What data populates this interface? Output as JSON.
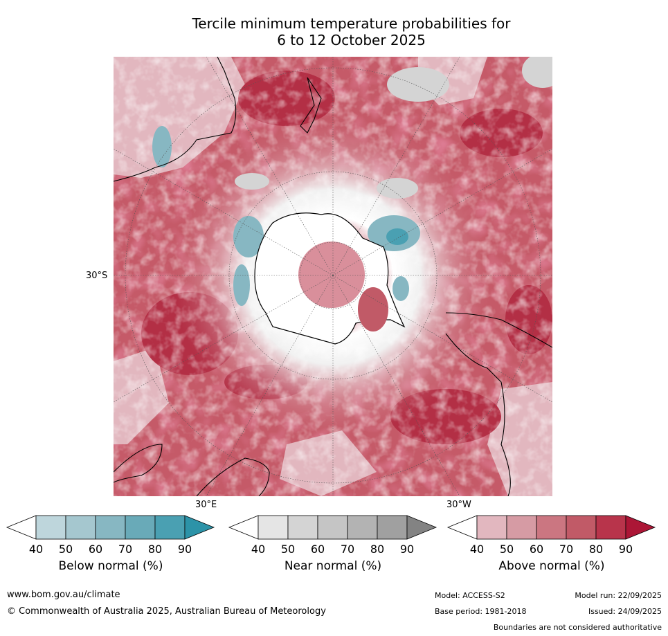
{
  "title": {
    "line1": "Tercile minimum temperature probabilities for",
    "line2": "6 to 12 October 2025"
  },
  "map": {
    "lat_label": "30°S",
    "lon_label_east": "30°E",
    "lon_label_west": "30°W"
  },
  "colorbars": [
    {
      "title": "Below normal (%)",
      "ticks": [
        "40",
        "50",
        "60",
        "70",
        "80",
        "90"
      ],
      "colors": [
        "#ffffff",
        "#bed6dc",
        "#a5c7cf",
        "#87b7c2",
        "#69aab8",
        "#4aa0b2",
        "#2c93a8"
      ]
    },
    {
      "title": "Near normal (%)",
      "ticks": [
        "40",
        "50",
        "60",
        "70",
        "80",
        "90"
      ],
      "colors": [
        "#ffffff",
        "#e5e5e5",
        "#d4d4d4",
        "#c5c5c5",
        "#b3b3b3",
        "#a0a0a0",
        "#838383"
      ]
    },
    {
      "title": "Above normal (%)",
      "ticks": [
        "40",
        "50",
        "60",
        "70",
        "80",
        "90"
      ],
      "colors": [
        "#ffffff",
        "#e2b7bf",
        "#d69ba4",
        "#cb7681",
        "#c15a67",
        "#b8344b",
        "#ac1636"
      ]
    }
  ],
  "footer": {
    "website": "www.bom.gov.au/climate",
    "copyright": "© Commonwealth of Australia 2025, Australian Bureau of Meteorology",
    "model": "Model: ACCESS-S2",
    "base_period": "Base period: 1981-2018",
    "model_run": "Model run: 22/09/2025",
    "issued": "Issued: 24/09/2025",
    "disclaimer": "Boundaries are not considered authoritative"
  }
}
